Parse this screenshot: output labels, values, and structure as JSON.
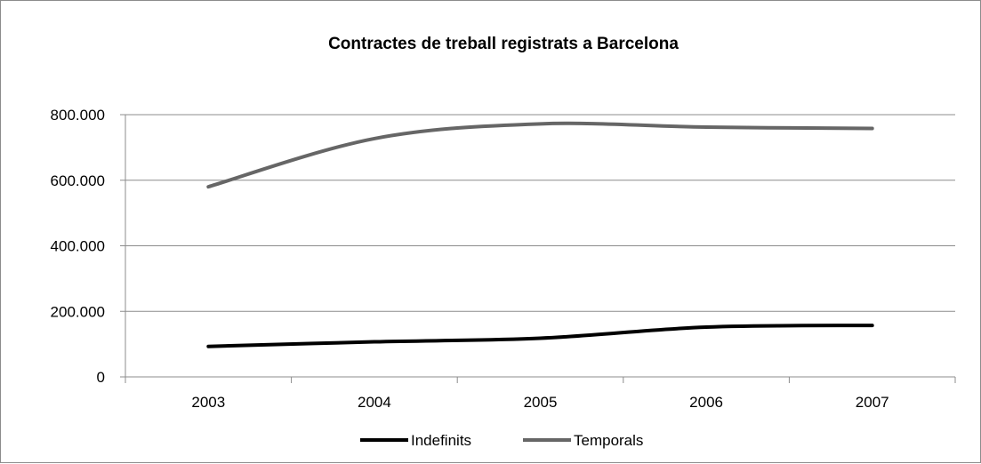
{
  "chart_data": {
    "type": "line",
    "title": "Contractes de treball registrats a Barcelona",
    "categories": [
      "2003",
      "2004",
      "2005",
      "2006",
      "2007"
    ],
    "series": [
      {
        "name": "Indefinits",
        "values": [
          93000,
          107000,
          118000,
          152000,
          157000
        ],
        "color": "#000000"
      },
      {
        "name": "Temporals",
        "values": [
          580000,
          727000,
          772000,
          762000,
          758000
        ],
        "color": "#666666"
      }
    ],
    "ylim": [
      0,
      800000
    ],
    "yticks": [
      0,
      200000,
      400000,
      600000,
      800000
    ],
    "ytick_labels": [
      "0",
      "200.000",
      "400.000",
      "600.000",
      "800.000"
    ],
    "grid": true,
    "smooth": true,
    "legend_position": "bottom",
    "grid_color": "#8c8c8c",
    "axis_color": "#8c8c8c"
  }
}
